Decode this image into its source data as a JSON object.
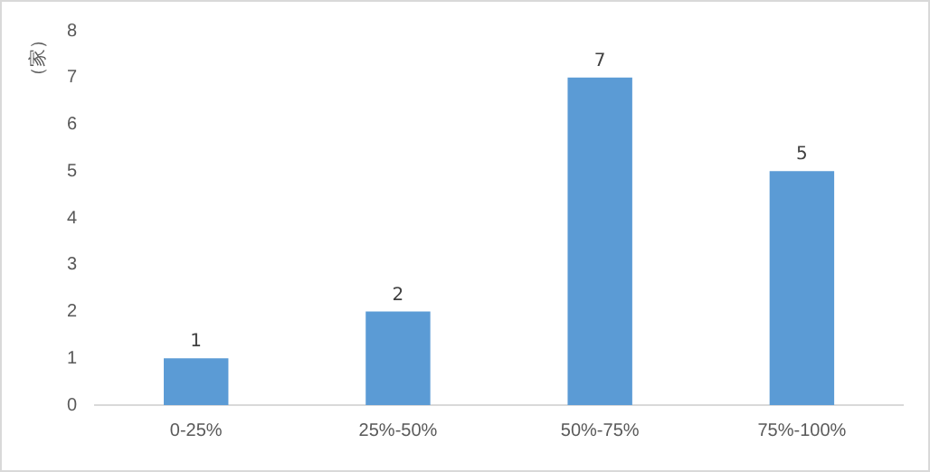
{
  "chart_data": {
    "type": "bar",
    "ylabel": "（家）",
    "categories": [
      "0-25%",
      "25%-50%",
      "50%-75%",
      "75%-100%"
    ],
    "values": [
      1,
      2,
      7,
      5
    ],
    "color": "#5b9bd5",
    "ylim": [
      0,
      8
    ],
    "yticks": [
      0,
      1,
      2,
      3,
      4,
      5,
      6,
      7,
      8
    ],
    "grid": false,
    "legend": false,
    "data_labels": true
  }
}
